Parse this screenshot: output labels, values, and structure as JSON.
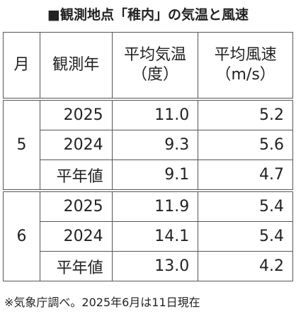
{
  "header": {
    "title": "■観測地点「稚内」の気温と風速"
  },
  "table": {
    "columns": [
      "月",
      "観測年",
      [
        "平均気温",
        "（度）"
      ],
      [
        "平均風速",
        "（m/s）"
      ]
    ],
    "groups": [
      {
        "month": "5",
        "rows": [
          [
            "2025",
            "11.0",
            "5.2"
          ],
          [
            "2024",
            "9.3",
            "5.6"
          ],
          [
            "平年値",
            "9.1",
            "4.7"
          ]
        ]
      },
      {
        "month": "6",
        "rows": [
          [
            "2025",
            "11.9",
            "5.4"
          ],
          [
            "2024",
            "14.1",
            "5.4"
          ],
          [
            "平年値",
            "13.0",
            "4.2"
          ]
        ]
      }
    ]
  },
  "footnote": "※気象庁調べ。2025年6月は11日現在"
}
